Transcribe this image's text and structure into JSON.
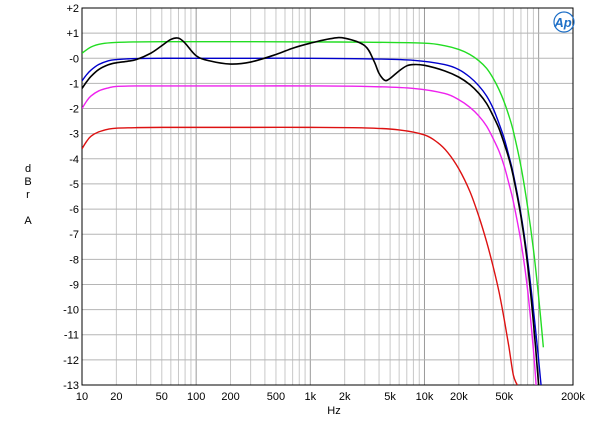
{
  "chart_data": {
    "type": "line",
    "title": "",
    "xlabel": "Hz",
    "ylabel_lines": [
      "d",
      "B",
      "r",
      "",
      "A"
    ],
    "x_scale": "log",
    "xlim": [
      10,
      200000
    ],
    "ylim": [
      -13,
      2
    ],
    "grid": true,
    "x_ticks": [
      {
        "value": 10,
        "label": "10"
      },
      {
        "value": 20,
        "label": "20"
      },
      {
        "value": 50,
        "label": "50"
      },
      {
        "value": 100,
        "label": "100"
      },
      {
        "value": 200,
        "label": "200"
      },
      {
        "value": 500,
        "label": "500"
      },
      {
        "value": 1000,
        "label": "1k"
      },
      {
        "value": 2000,
        "label": "2k"
      },
      {
        "value": 5000,
        "label": "5k"
      },
      {
        "value": 10000,
        "label": "10k"
      },
      {
        "value": 20000,
        "label": "20k"
      },
      {
        "value": 50000,
        "label": "50k"
      },
      {
        "value": 200000,
        "label": "200k"
      }
    ],
    "y_ticks": [
      {
        "value": 2,
        "label": "+2"
      },
      {
        "value": 1,
        "label": "+1"
      },
      {
        "value": 0,
        "label": "-0"
      },
      {
        "value": -1,
        "label": "-1"
      },
      {
        "value": -2,
        "label": "-2"
      },
      {
        "value": -3,
        "label": "-3"
      },
      {
        "value": -4,
        "label": "-4"
      },
      {
        "value": -5,
        "label": "-5"
      },
      {
        "value": -6,
        "label": "-6"
      },
      {
        "value": -7,
        "label": "-7"
      },
      {
        "value": -8,
        "label": "-8"
      },
      {
        "value": -9,
        "label": "-9"
      },
      {
        "value": -10,
        "label": "-10"
      },
      {
        "value": -11,
        "label": "-11"
      },
      {
        "value": -12,
        "label": "-12"
      },
      {
        "value": -13,
        "label": "-13"
      }
    ],
    "series": [
      {
        "color": "#22dd22",
        "x": [
          10,
          12,
          15,
          20,
          30,
          50,
          100,
          300,
          1000,
          3000,
          10000,
          15000,
          20000,
          25000,
          30000,
          35000,
          40000,
          45000,
          50000,
          55000,
          60000,
          70000,
          80000,
          90000,
          100000,
          110000
        ],
        "y": [
          0.2,
          0.45,
          0.58,
          0.63,
          0.65,
          0.66,
          0.66,
          0.66,
          0.65,
          0.64,
          0.6,
          0.5,
          0.35,
          0.15,
          -0.1,
          -0.4,
          -0.8,
          -1.25,
          -1.75,
          -2.3,
          -2.9,
          -4.3,
          -5.9,
          -7.6,
          -9.5,
          -11.5
        ]
      },
      {
        "color": "#0000cc",
        "x": [
          10,
          11,
          12,
          14,
          17,
          20,
          30,
          50,
          100,
          300,
          1000,
          3000,
          8000,
          15000,
          20000,
          25000,
          30000,
          35000,
          40000,
          45000,
          50000,
          55000,
          60000,
          70000,
          80000,
          90000,
          100000,
          105000
        ],
        "y": [
          -0.9,
          -0.65,
          -0.47,
          -0.25,
          -0.1,
          -0.05,
          -0.01,
          0.0,
          0.0,
          0.0,
          0.0,
          -0.02,
          -0.08,
          -0.25,
          -0.45,
          -0.75,
          -1.1,
          -1.5,
          -2.0,
          -2.6,
          -3.2,
          -3.9,
          -4.6,
          -6.2,
          -8.0,
          -10.0,
          -12.0,
          -13.0
        ]
      },
      {
        "color": "#ee22ee",
        "x": [
          10,
          11,
          12,
          14,
          17,
          20,
          30,
          50,
          100,
          300,
          1000,
          3000,
          8000,
          15000,
          20000,
          25000,
          30000,
          35000,
          40000,
          45000,
          50000,
          55000,
          60000,
          70000,
          80000,
          90000,
          95000
        ],
        "y": [
          -2.0,
          -1.7,
          -1.5,
          -1.3,
          -1.18,
          -1.12,
          -1.1,
          -1.1,
          -1.1,
          -1.1,
          -1.1,
          -1.12,
          -1.2,
          -1.4,
          -1.65,
          -1.95,
          -2.3,
          -2.7,
          -3.2,
          -3.7,
          -4.3,
          -5.0,
          -5.7,
          -7.3,
          -9.2,
          -11.6,
          -13.0
        ]
      },
      {
        "color": "#dd1111",
        "x": [
          10,
          11,
          12,
          14,
          17,
          20,
          30,
          50,
          100,
          300,
          1000,
          3000,
          6000,
          10000,
          13000,
          16000,
          20000,
          25000,
          30000,
          35000,
          40000,
          45000,
          50000,
          55000,
          60000,
          65000
        ],
        "y": [
          -3.6,
          -3.3,
          -3.1,
          -2.93,
          -2.82,
          -2.78,
          -2.76,
          -2.75,
          -2.75,
          -2.75,
          -2.75,
          -2.77,
          -2.85,
          -3.05,
          -3.35,
          -3.75,
          -4.4,
          -5.3,
          -6.3,
          -7.3,
          -8.3,
          -9.3,
          -10.4,
          -11.5,
          -12.6,
          -13.0
        ]
      },
      {
        "color": "#000000",
        "x": [
          10,
          11,
          12,
          14,
          17,
          20,
          25,
          30,
          40,
          50,
          60,
          70,
          80,
          100,
          130,
          200,
          300,
          500,
          700,
          1000,
          1500,
          2000,
          3000,
          3600,
          4000,
          4500,
          5000,
          6000,
          7000,
          8000,
          10000,
          15000,
          20000,
          25000,
          30000,
          35000,
          40000,
          45000,
          50000,
          55000,
          60000,
          70000,
          80000,
          90000,
          100000
        ],
        "y": [
          -1.2,
          -0.93,
          -0.72,
          -0.45,
          -0.26,
          -0.18,
          -0.12,
          -0.05,
          0.2,
          0.5,
          0.75,
          0.8,
          0.6,
          0.1,
          -0.1,
          -0.23,
          -0.15,
          0.15,
          0.4,
          0.6,
          0.78,
          0.8,
          0.5,
          -0.1,
          -0.6,
          -0.88,
          -0.8,
          -0.5,
          -0.3,
          -0.25,
          -0.28,
          -0.5,
          -0.75,
          -1.05,
          -1.4,
          -1.8,
          -2.3,
          -2.8,
          -3.4,
          -4.0,
          -4.7,
          -6.3,
          -8.2,
          -10.5,
          -13.0
        ]
      }
    ]
  },
  "logo": {
    "text": "Ap",
    "color": "#1d6fc7"
  }
}
